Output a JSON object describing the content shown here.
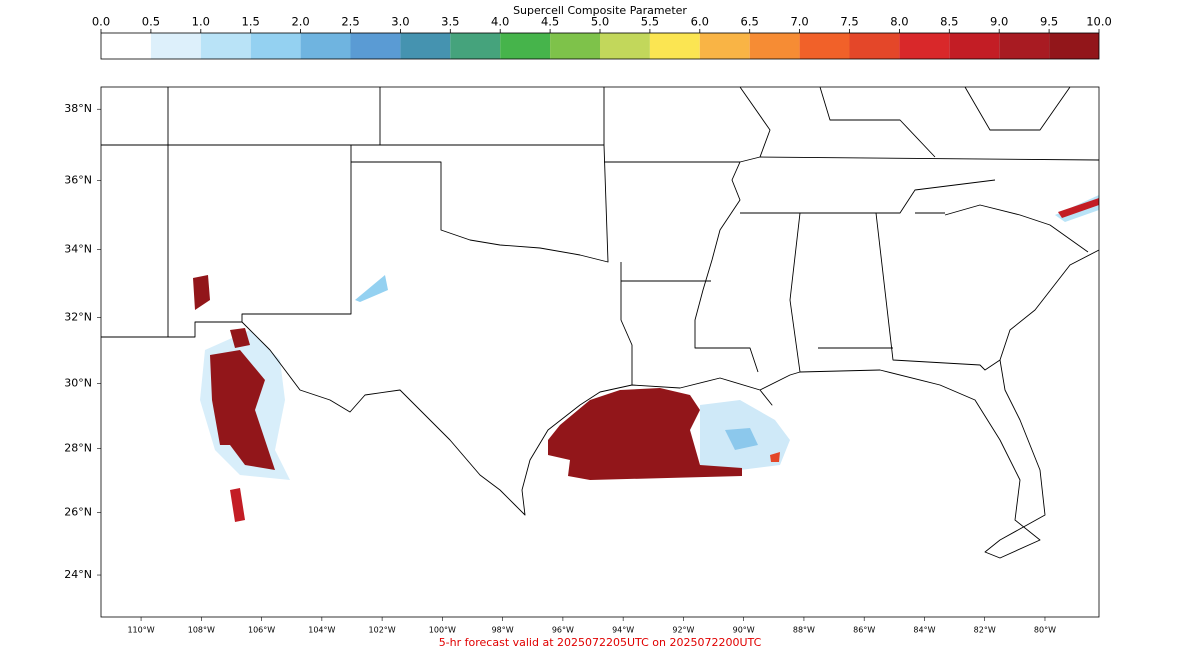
{
  "colorbar": {
    "title": "Supercell Composite Parameter",
    "ticks": [
      {
        "value": 0,
        "label": "0.0"
      },
      0.5,
      {
        "value": 1,
        "label": "1.0"
      },
      1.5,
      {
        "value": 2,
        "label": "2.0"
      },
      2.5,
      {
        "value": 3,
        "label": "3.0"
      },
      3.5,
      {
        "value": 4,
        "label": "4.0"
      },
      4.5,
      {
        "value": 5,
        "label": "5.0"
      },
      5.5,
      {
        "value": 6,
        "label": "6.0"
      },
      6.5,
      {
        "value": 7,
        "label": "7.0"
      },
      7.5,
      {
        "value": 8,
        "label": "8.0"
      },
      8.5,
      {
        "value": 9,
        "label": "9.0"
      },
      9.5,
      {
        "value": 10,
        "label": "10.0"
      }
    ],
    "colors": [
      "#ffffff",
      "#ddf0fb",
      "#b9e3f7",
      "#94d1f1",
      "#6fb4e0",
      "#5a9bd4",
      "#4593b0",
      "#45a37c",
      "#46b44b",
      "#7ec24a",
      "#c2d75b",
      "#fbe552",
      "#f9b445",
      "#f68c34",
      "#f16129",
      "#e44729",
      "#d9282a",
      "#c31d25",
      "#a81b22",
      "#92161a"
    ]
  },
  "map": {
    "lat_ticks": [
      {
        "value": 38,
        "label": "38°N"
      },
      {
        "value": 36,
        "label": "36°N"
      },
      {
        "value": 34,
        "label": "34°N"
      },
      {
        "value": 32,
        "label": "32°N"
      },
      {
        "value": 30,
        "label": "30°N"
      },
      {
        "value": 28,
        "label": "28°N"
      },
      {
        "value": 26,
        "label": "26°N"
      },
      {
        "value": 24,
        "label": "24°N"
      }
    ],
    "lon_ticks": [
      {
        "value": -110,
        "label": "110°W"
      },
      {
        "value": -108,
        "label": "108°W"
      },
      {
        "value": -106,
        "label": "106°W"
      },
      {
        "value": -104,
        "label": "104°W"
      },
      {
        "value": -102,
        "label": "102°W"
      },
      {
        "value": -100,
        "label": "100°W"
      },
      {
        "value": -98,
        "label": "98°W"
      },
      {
        "value": -96,
        "label": "96°W"
      },
      {
        "value": -94,
        "label": "94°W"
      },
      {
        "value": -92,
        "label": "92°W"
      },
      {
        "value": -90,
        "label": "90°W"
      },
      {
        "value": -88,
        "label": "88°W"
      },
      {
        "value": -86,
        "label": "86°W"
      },
      {
        "value": -84,
        "label": "84°W"
      },
      {
        "value": -82,
        "label": "82°W"
      },
      {
        "value": -80,
        "label": "80°W"
      }
    ]
  },
  "footer": "5-hr forecast valid at 2025072205UTC on 2025072200UTC"
}
